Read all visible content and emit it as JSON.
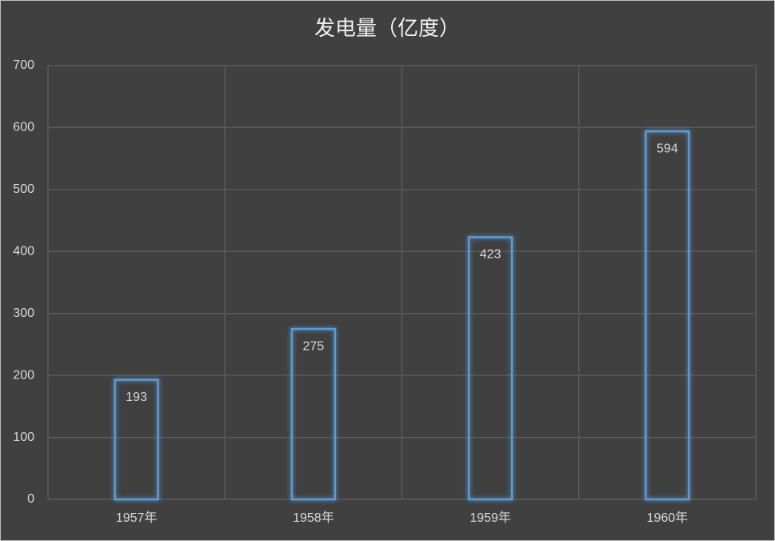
{
  "chart_data": {
    "type": "bar",
    "title": "发电量（亿度）",
    "categories": [
      "1957年",
      "1958年",
      "1959年",
      "1960年"
    ],
    "values": [
      193,
      275,
      423,
      594
    ],
    "color": "#5b9bd5",
    "ylim": [
      0,
      700
    ],
    "yticks": [
      0,
      100,
      200,
      300,
      400,
      500,
      600,
      700
    ],
    "grid": true
  }
}
